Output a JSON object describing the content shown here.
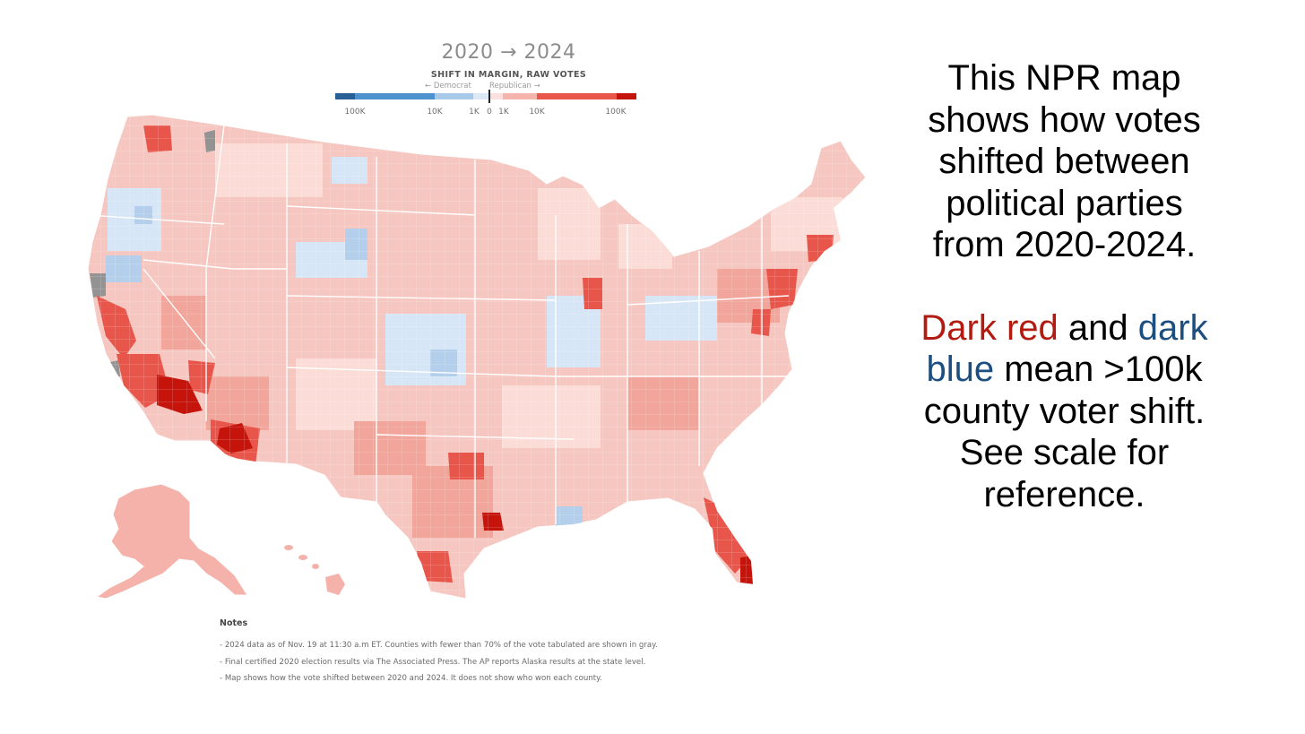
{
  "legend": {
    "title": "2020 → 2024",
    "subtitle": "SHIFT IN MARGIN, RAW VOTES",
    "dem_direction": "← Democrat",
    "rep_direction": "Republican →",
    "ticks": [
      "100K",
      "10K",
      "1K",
      "0",
      "1K",
      "10K",
      "100K"
    ],
    "bar_colors": {
      "dem_100k_plus": "#2a5f96",
      "dem_10k_100k": "#4e91cf",
      "dem_1k_10k": "#a9c9e8",
      "dem_0_1k": "#dde9f6",
      "rep_0_1k": "#fbe0dd",
      "rep_1k_10k": "#f5b5ad",
      "rep_10k_100k": "#e9574a",
      "rep_100k_plus": "#c4140b"
    }
  },
  "map": {
    "no_data_color": "#939393",
    "border_color": "#ffffff",
    "largest_shifts": [
      "Los Angeles area",
      "Maricopa (Phoenix) area",
      "Harris (Houston) area",
      "Miami-Dade area"
    ]
  },
  "notes": {
    "heading": "Notes",
    "lines": [
      "- 2024 data as of Nov. 19 at 11:30 a.m ET. Counties with fewer than 70% of the vote tabulated are shown in gray.",
      "- Final certified 2020 election results via The Associated Press. The AP reports Alaska results at the state level.",
      "- Map shows how the vote shifted between 2020 and 2024. It does not show who won each county."
    ]
  },
  "caption": {
    "intro": "This NPR map shows how votes shifted between political parties from 2020-2024.",
    "dark_red": "Dark red",
    "and": " and ",
    "dark_blue": "dark blue",
    "rest": " mean >100k county voter shift. See scale for reference.",
    "dark_red_color": "#b31b10",
    "dark_blue_color": "#1d4e80"
  }
}
